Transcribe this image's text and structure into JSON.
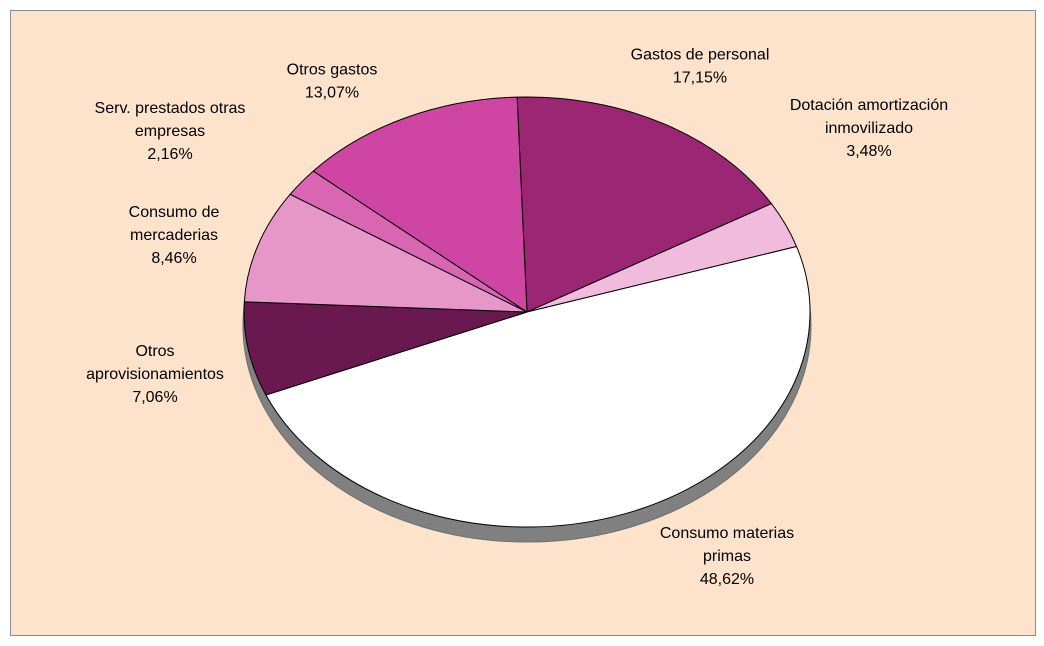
{
  "chart_data": {
    "type": "pie",
    "background": "#FDE3CC",
    "shadow_color": "#808080",
    "slices": [
      {
        "label_lines": [
          "Gastos de personal",
          "17,15%"
        ],
        "value": 17.15,
        "color": "#9B2673"
      },
      {
        "label_lines": [
          "Dotación amortización",
          "inmovilizado",
          "3,48%"
        ],
        "value": 3.48,
        "color": "#F0BBDD"
      },
      {
        "label_lines": [
          "Consumo materias",
          "primas",
          "48,62%"
        ],
        "value": 48.62,
        "color": "#FFFFFF"
      },
      {
        "label_lines": [
          "Otros",
          "aprovisionamientos",
          "7,06%"
        ],
        "value": 7.06,
        "color": "#6A1950"
      },
      {
        "label_lines": [
          "Consumo de",
          "mercaderias",
          "8,46%"
        ],
        "value": 8.46,
        "color": "#E696C8"
      },
      {
        "label_lines": [
          "Serv. prestados otras",
          "empresas",
          "2,16%"
        ],
        "value": 2.16,
        "color": "#D866B3"
      },
      {
        "label_lines": [
          "Otros gastos",
          "13,07%"
        ],
        "value": 13.07,
        "color": "#CF45A3"
      }
    ]
  }
}
